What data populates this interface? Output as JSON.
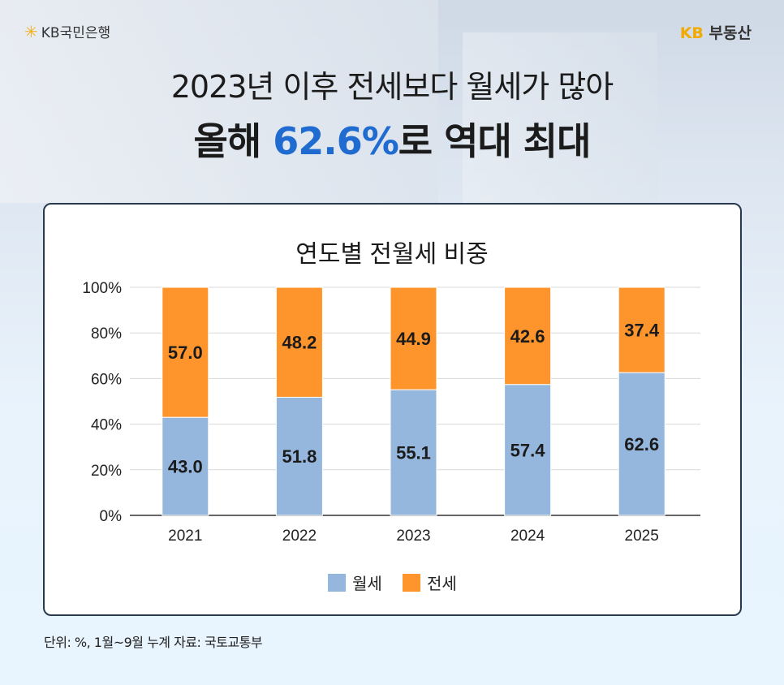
{
  "header": {
    "bank_logo": "KB국민은행",
    "brand_logo_kb": "KB",
    "brand_logo_text": "부동산",
    "headline": "2023년 이후 전세보다 월세가 많아",
    "subhead_pre": "올해 ",
    "subhead_highlight": "62.6%",
    "subhead_post": "로 역대 최대"
  },
  "colors": {
    "wolse": "#95b7dd",
    "jeonse": "#fe952c",
    "highlight": "#1f6bd0"
  },
  "chart_data": {
    "type": "bar",
    "stacked": true,
    "title": "연도별 전월세 비중",
    "categories": [
      "2021",
      "2022",
      "2023",
      "2024",
      "2025"
    ],
    "series": [
      {
        "name": "월세",
        "values": [
          43.0,
          51.8,
          55.1,
          57.4,
          62.6
        ]
      },
      {
        "name": "전세",
        "values": [
          57.0,
          48.2,
          44.9,
          42.6,
          37.4
        ]
      }
    ],
    "ylim": [
      0,
      100
    ],
    "yticks": [
      "0%",
      "20%",
      "40%",
      "60%",
      "80%",
      "100%"
    ],
    "grid": true,
    "legend": "bottom"
  },
  "footnote": "단위: %, 1월~9월 누계 자료: 국토교통부"
}
